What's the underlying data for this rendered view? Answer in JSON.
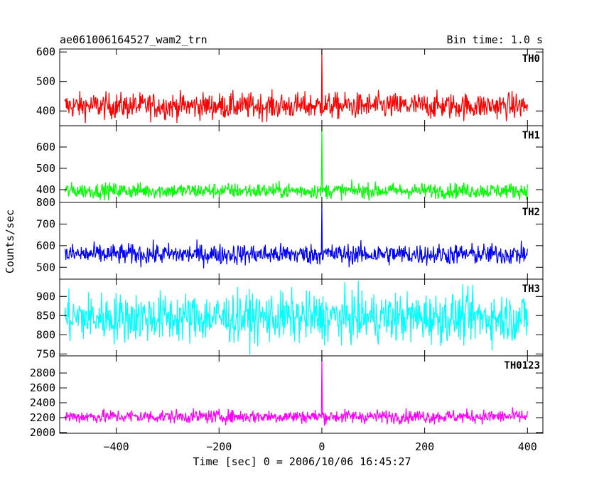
{
  "header": {
    "title": "ae061006164527_wam2_trn",
    "bin_time": "Bin time: 1.0 s"
  },
  "chart_data": {
    "type": "line",
    "layout": "vertically stacked panels sharing x axis",
    "title": "ae061006164527_wam2_trn",
    "bin_time_label": "Bin time: 1.0 s",
    "xlabel": "Time [sec] 0 = 2006/10/06 16:45:27",
    "ylabel": "Counts/sec",
    "xlim": [
      -510,
      430
    ],
    "x_ticks": [
      -400,
      -200,
      0,
      200,
      400
    ],
    "x_tick_labels": [
      "−400",
      "−200",
      "0",
      "200",
      "400"
    ],
    "x_range_of_data": [
      -500,
      400
    ],
    "bin_seconds": 1.0,
    "series": [
      {
        "name": "TH0",
        "color": "#ff0000",
        "ylim": [
          350,
          610
        ],
        "y_ticks": [
          400,
          500,
          600
        ],
        "baseline": 417,
        "noise_sd": 22,
        "spike": {
          "x": 0,
          "y": 610
        }
      },
      {
        "name": "TH1",
        "color": "#00ff00",
        "ylim": [
          340,
          700
        ],
        "y_ticks": [
          400,
          500,
          600
        ],
        "baseline": 395,
        "noise_sd": 18,
        "spike": {
          "x": 0,
          "y": 700
        }
      },
      {
        "name": "TH2",
        "color": "#0000ff",
        "ylim": [
          445,
          800
        ],
        "y_ticks": [
          500,
          600,
          700,
          800
        ],
        "baseline": 560,
        "noise_sd": 24,
        "spike": {
          "x": 0,
          "y": 800
        }
      },
      {
        "name": "TH3",
        "color": "#00ffff",
        "ylim": [
          745,
          945
        ],
        "y_ticks": [
          750,
          800,
          850,
          900
        ],
        "baseline": 845,
        "noise_sd": 32,
        "spike": null
      },
      {
        "name": "TH0123",
        "color": "#ff00ff",
        "ylim": [
          1990,
          3030
        ],
        "y_ticks": [
          2000,
          2200,
          2400,
          2600,
          2800
        ],
        "baseline": 2215,
        "noise_sd": 45,
        "spike": {
          "x": 0,
          "y": 3030
        }
      }
    ],
    "grid": false,
    "legend": "panel labels top-right"
  }
}
